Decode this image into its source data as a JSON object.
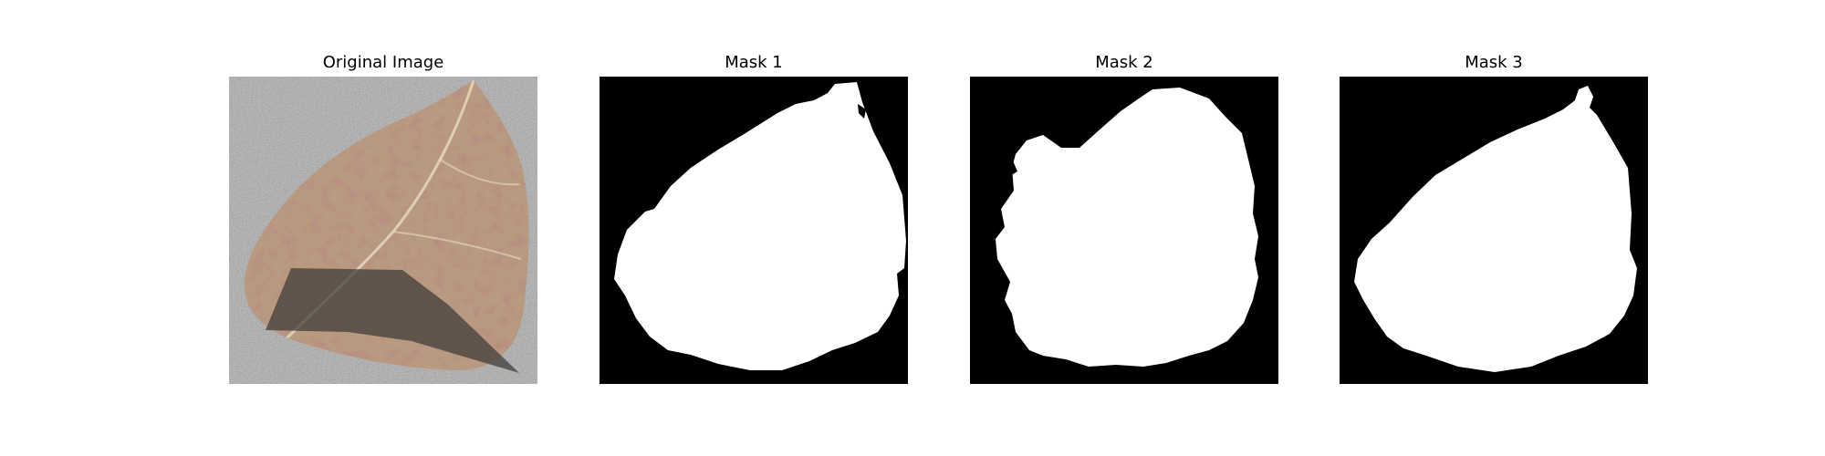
{
  "figure": {
    "panels": [
      {
        "title": "Original Image",
        "kind": "photo",
        "content": "leaf-photo"
      },
      {
        "title": "Mask 1",
        "kind": "mask",
        "content": "segmentation-mask"
      },
      {
        "title": "Mask 2",
        "kind": "mask",
        "content": "segmentation-mask"
      },
      {
        "title": "Mask 3",
        "kind": "mask",
        "content": "segmentation-mask"
      }
    ],
    "colors": {
      "background": "#ffffff",
      "mask_background": "#000000",
      "mask_foreground": "#ffffff",
      "photo_backdrop": "#a9a9a9",
      "leaf": "#b89a80",
      "leaf_stain": "#7a3b3b",
      "shadow": "#3d3a36"
    }
  }
}
